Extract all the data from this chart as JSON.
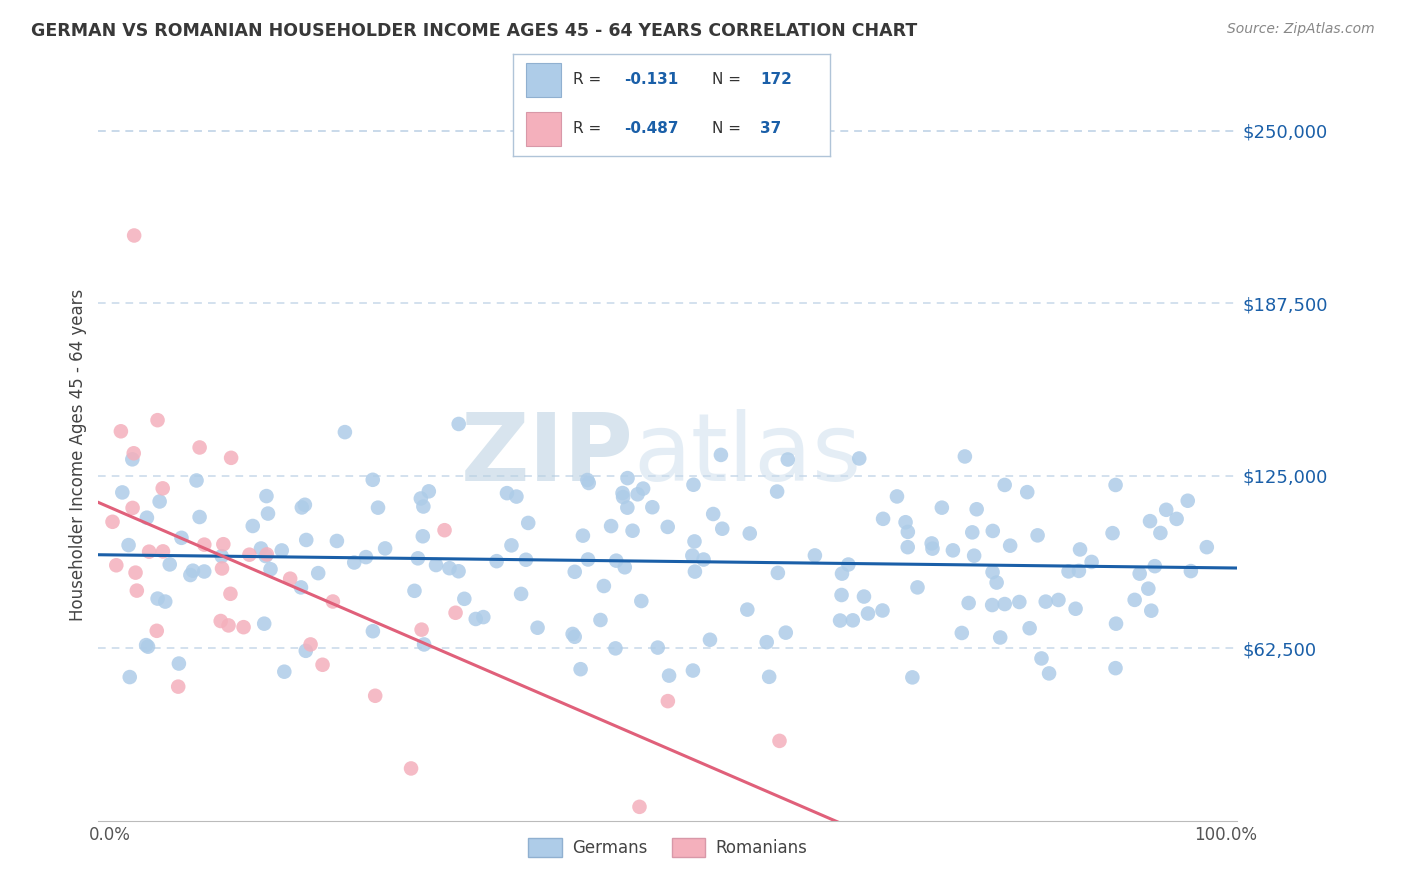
{
  "title": "GERMAN VS ROMANIAN HOUSEHOLDER INCOME AGES 45 - 64 YEARS CORRELATION CHART",
  "source": "Source: ZipAtlas.com",
  "ylabel": "Householder Income Ages 45 - 64 years",
  "y_tick_values": [
    62500,
    125000,
    187500,
    250000
  ],
  "ylim": [
    0,
    265000
  ],
  "xlim": [
    -0.01,
    1.01
  ],
  "german_R": -0.131,
  "german_N": 172,
  "romanian_R": -0.487,
  "romanian_N": 37,
  "german_color": "#aecce8",
  "romanian_color": "#f4b0bc",
  "german_line_color": "#1a5fa8",
  "romanian_line_color": "#e0607a",
  "background_color": "#ffffff",
  "grid_color": "#c8d8ea",
  "title_color": "#383838",
  "source_color": "#888888",
  "watermark_zip": "ZIP",
  "watermark_atlas": "atlas",
  "legend_label_german": "Germans",
  "legend_label_romanian": "Romanians",
  "legend_R_color": "#383838",
  "legend_N_color": "#1a5fa8"
}
